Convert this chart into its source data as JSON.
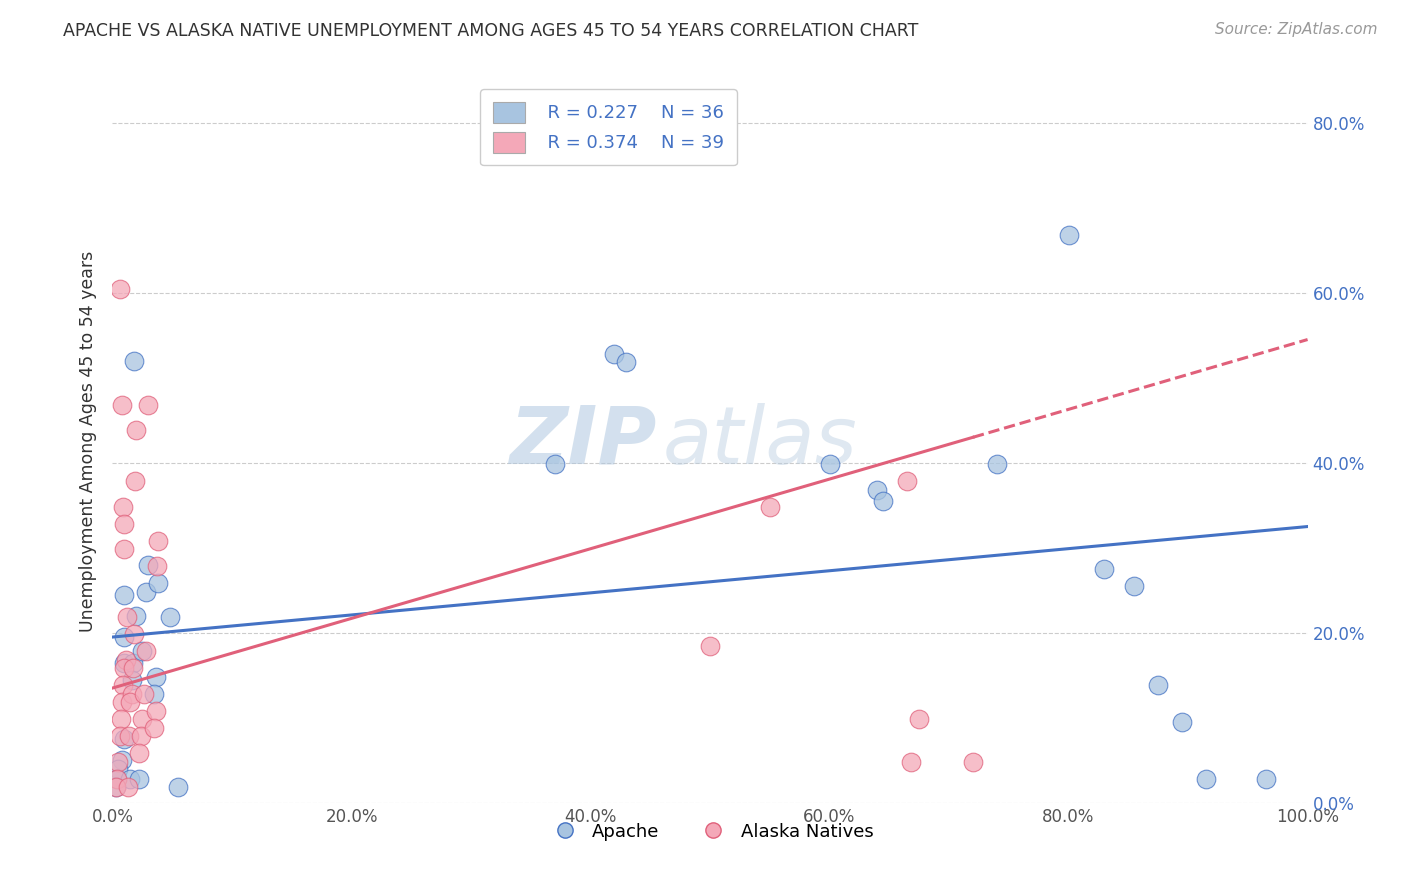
{
  "title": "APACHE VS ALASKA NATIVE UNEMPLOYMENT AMONG AGES 45 TO 54 YEARS CORRELATION CHART",
  "source": "Source: ZipAtlas.com",
  "ylabel": "Unemployment Among Ages 45 to 54 years",
  "xlabel": "",
  "xlim": [
    0.0,
    1.0
  ],
  "ylim": [
    0.0,
    0.85
  ],
  "xticks": [
    0.0,
    0.2,
    0.4,
    0.6,
    0.8,
    1.0
  ],
  "xticklabels": [
    "0.0%",
    "20.0%",
    "40.0%",
    "60.0%",
    "80.0%",
    "100.0%"
  ],
  "yticks": [
    0.0,
    0.2,
    0.4,
    0.6,
    0.8
  ],
  "yticklabels": [
    "0.0%",
    "20.0%",
    "40.0%",
    "60.0%",
    "80.0%"
  ],
  "legend_labels": [
    "Apache",
    "Alaska Natives"
  ],
  "legend_r": [
    "R = 0.227",
    "R = 0.374"
  ],
  "legend_n": [
    "N = 36",
    "N = 39"
  ],
  "apache_color": "#a8c4e0",
  "alaska_color": "#f4a8b8",
  "apache_line_color": "#4472c4",
  "alaska_line_color": "#e0607a",
  "apache_scatter": [
    [
      0.018,
      0.52
    ],
    [
      0.01,
      0.245
    ],
    [
      0.01,
      0.195
    ],
    [
      0.01,
      0.165
    ],
    [
      0.01,
      0.075
    ],
    [
      0.008,
      0.05
    ],
    [
      0.005,
      0.04
    ],
    [
      0.004,
      0.028
    ],
    [
      0.003,
      0.018
    ],
    [
      0.02,
      0.22
    ],
    [
      0.017,
      0.165
    ],
    [
      0.016,
      0.145
    ],
    [
      0.015,
      0.028
    ],
    [
      0.03,
      0.28
    ],
    [
      0.028,
      0.248
    ],
    [
      0.025,
      0.178
    ],
    [
      0.022,
      0.028
    ],
    [
      0.038,
      0.258
    ],
    [
      0.036,
      0.148
    ],
    [
      0.035,
      0.128
    ],
    [
      0.048,
      0.218
    ],
    [
      0.055,
      0.018
    ],
    [
      0.37,
      0.398
    ],
    [
      0.42,
      0.528
    ],
    [
      0.43,
      0.518
    ],
    [
      0.6,
      0.398
    ],
    [
      0.64,
      0.368
    ],
    [
      0.645,
      0.355
    ],
    [
      0.74,
      0.398
    ],
    [
      0.8,
      0.668
    ],
    [
      0.83,
      0.275
    ],
    [
      0.855,
      0.255
    ],
    [
      0.875,
      0.138
    ],
    [
      0.895,
      0.095
    ],
    [
      0.915,
      0.028
    ],
    [
      0.965,
      0.028
    ]
  ],
  "alaska_scatter": [
    [
      0.006,
      0.605
    ],
    [
      0.008,
      0.468
    ],
    [
      0.009,
      0.348
    ],
    [
      0.01,
      0.328
    ],
    [
      0.01,
      0.298
    ],
    [
      0.012,
      0.218
    ],
    [
      0.011,
      0.168
    ],
    [
      0.01,
      0.158
    ],
    [
      0.009,
      0.138
    ],
    [
      0.008,
      0.118
    ],
    [
      0.007,
      0.098
    ],
    [
      0.006,
      0.078
    ],
    [
      0.005,
      0.048
    ],
    [
      0.004,
      0.028
    ],
    [
      0.003,
      0.018
    ],
    [
      0.02,
      0.438
    ],
    [
      0.019,
      0.378
    ],
    [
      0.018,
      0.198
    ],
    [
      0.017,
      0.158
    ],
    [
      0.016,
      0.128
    ],
    [
      0.015,
      0.118
    ],
    [
      0.014,
      0.078
    ],
    [
      0.013,
      0.018
    ],
    [
      0.03,
      0.468
    ],
    [
      0.028,
      0.178
    ],
    [
      0.026,
      0.128
    ],
    [
      0.025,
      0.098
    ],
    [
      0.024,
      0.078
    ],
    [
      0.022,
      0.058
    ],
    [
      0.038,
      0.308
    ],
    [
      0.037,
      0.278
    ],
    [
      0.036,
      0.108
    ],
    [
      0.035,
      0.088
    ],
    [
      0.5,
      0.185
    ],
    [
      0.55,
      0.348
    ],
    [
      0.665,
      0.378
    ],
    [
      0.668,
      0.048
    ],
    [
      0.675,
      0.098
    ],
    [
      0.72,
      0.048
    ]
  ],
  "apache_trendline": [
    [
      0.0,
      0.195
    ],
    [
      1.0,
      0.325
    ]
  ],
  "alaska_trendline_solid": [
    [
      0.0,
      0.135
    ],
    [
      0.72,
      0.43
    ]
  ],
  "alaska_trendline_dashed": [
    [
      0.72,
      0.43
    ],
    [
      1.0,
      0.545
    ]
  ],
  "watermark_zip": "ZIP",
  "watermark_atlas": "atlas",
  "background_color": "#ffffff",
  "grid_color": "#cccccc"
}
